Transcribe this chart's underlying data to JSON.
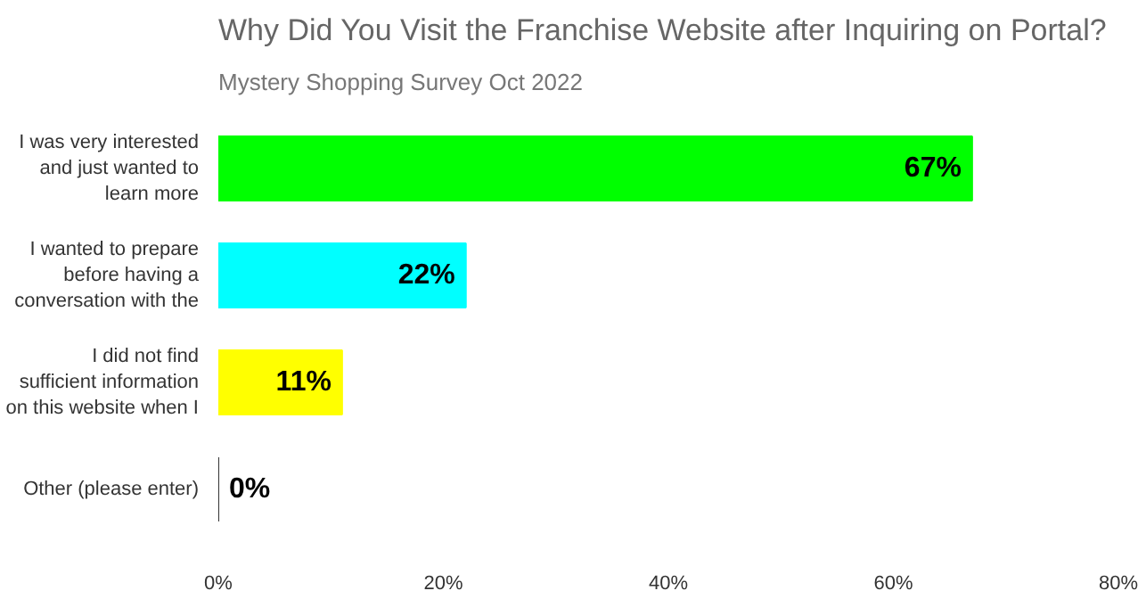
{
  "chart_data": {
    "type": "bar",
    "orientation": "horizontal",
    "title": "Why Did You Visit the Franchise Website after Inquiring on Portal?",
    "subtitle": "Mystery Shopping Survey  Oct 2022",
    "categories": [
      "I was very interested and just wanted to learn more",
      "I wanted to prepare before having a conversation with the",
      "I did not find sufficient information on this website when I",
      "Other (please enter)"
    ],
    "values": [
      67,
      22,
      11,
      0
    ],
    "colors": [
      "#00ff00",
      "#00ffff",
      "#ffff00",
      "#333333"
    ],
    "value_labels": [
      "67%",
      "22%",
      "11%",
      "0%"
    ],
    "xlim": [
      0,
      80
    ],
    "xticks": [
      {
        "value": 0,
        "label": "0%"
      },
      {
        "value": 20,
        "label": "20%"
      },
      {
        "value": 40,
        "label": "40%"
      },
      {
        "value": 60,
        "label": "60%"
      },
      {
        "value": 80,
        "label": "80%"
      }
    ],
    "grid": false,
    "legend": false
  }
}
